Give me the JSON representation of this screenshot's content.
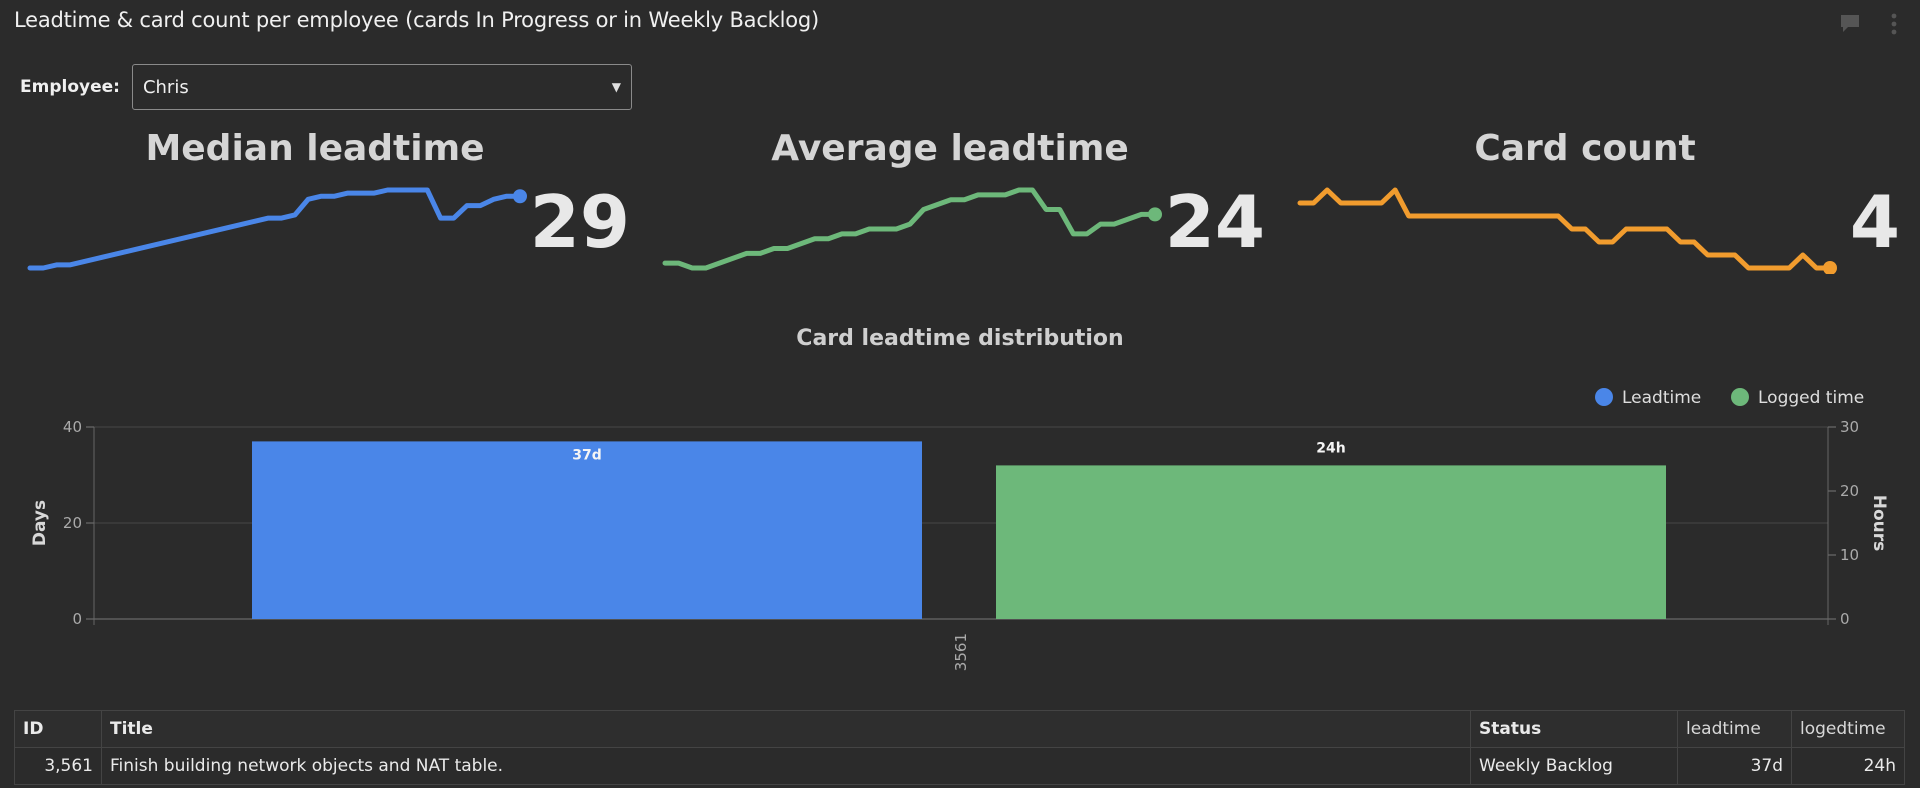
{
  "header": {
    "title": "Leadtime & card count per employee (cards In Progress or in Weekly Backlog)",
    "icons": [
      "comment-icon",
      "more-vertical-icon"
    ]
  },
  "filter": {
    "label": "Employee:",
    "selected": "Chris"
  },
  "kpis": [
    {
      "title": "Median leadtime",
      "value": "29",
      "color": "#4a86e8",
      "trend": [
        2,
        2,
        3,
        3,
        4,
        5,
        6,
        7,
        8,
        9,
        10,
        11,
        12,
        13,
        14,
        15,
        16,
        17,
        18,
        18,
        19,
        24,
        25,
        25,
        26,
        26,
        26,
        27,
        27,
        27,
        27,
        18,
        18,
        22,
        22,
        24,
        25,
        25
      ]
    },
    {
      "title": "Average leadtime",
      "value": "24",
      "color": "#6db87a",
      "trend": [
        11,
        11,
        10,
        10,
        11,
        12,
        13,
        13,
        14,
        14,
        15,
        16,
        16,
        17,
        17,
        18,
        18,
        18,
        19,
        22,
        23,
        24,
        24,
        25,
        25,
        25,
        26,
        26,
        22,
        22,
        17,
        17,
        19,
        19,
        20,
        21,
        21
      ]
    },
    {
      "title": "Card count",
      "value": "4",
      "color": "#f19c2e",
      "trend": [
        8,
        8,
        9,
        8,
        8,
        8,
        8,
        9,
        7,
        7,
        7,
        7,
        7,
        7,
        7,
        7,
        7,
        7,
        7,
        7,
        6,
        6,
        5,
        5,
        6,
        6,
        6,
        6,
        5,
        5,
        4,
        4,
        4,
        3,
        3,
        3,
        3,
        4,
        3,
        3
      ]
    }
  ],
  "distribution": {
    "title": "Card leadtime distribution",
    "legend": [
      {
        "label": "Leadtime",
        "color": "#4a86e8"
      },
      {
        "label": "Logged time",
        "color": "#6db87a"
      }
    ],
    "left_ticks": [
      "40",
      "20",
      "0"
    ],
    "right_ticks": [
      "30",
      "20",
      "10",
      "0"
    ],
    "left_axis_label": "Days",
    "right_axis_label": "Hours"
  },
  "chart_data": {
    "type": "bar",
    "title": "Card leadtime distribution",
    "categories": [
      "3561"
    ],
    "series": [
      {
        "name": "Leadtime",
        "axis": "left",
        "values": [
          37
        ],
        "labels": [
          "37d"
        ],
        "color": "#4a86e8"
      },
      {
        "name": "Logged time",
        "axis": "right",
        "values": [
          24
        ],
        "labels": [
          "24h"
        ],
        "color": "#6db87a"
      }
    ],
    "ylabel": "Days",
    "ylim": [
      0,
      40
    ],
    "y2label": "Hours",
    "y2lim": [
      0,
      30
    ],
    "grid": true,
    "legend": "top-right"
  },
  "table": {
    "headers": [
      "ID",
      "Title",
      "Status",
      "leadtime",
      "logedtime"
    ],
    "rows": [
      [
        "3,561",
        "Finish building network objects and NAT table.",
        "Weekly Backlog",
        "37d",
        "24h"
      ]
    ]
  }
}
